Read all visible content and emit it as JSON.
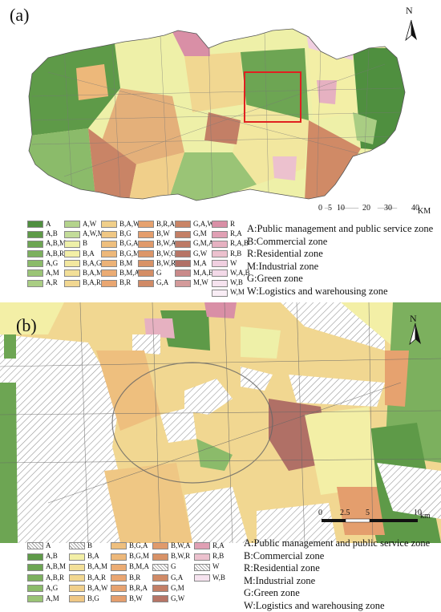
{
  "panel_a": {
    "label": "(a)",
    "north": "N",
    "scale": {
      "ticks": [
        "0",
        "5",
        "10",
        "20",
        "30",
        "40"
      ],
      "unit": "KM"
    },
    "legend_items": [
      {
        "code": "A",
        "color": "#4f8f3f"
      },
      {
        "code": "A,B",
        "color": "#5e9a48"
      },
      {
        "code": "A,B,M",
        "color": "#6da553"
      },
      {
        "code": "A,B,R",
        "color": "#7cb05e"
      },
      {
        "code": "A,G",
        "color": "#8bbb6a"
      },
      {
        "code": "A,M",
        "color": "#9ac476"
      },
      {
        "code": "A,R",
        "color": "#a9cd83"
      },
      {
        "code": "A,W",
        "color": "#b4d38c"
      },
      {
        "code": "A,W,M",
        "color": "#c3dc99"
      },
      {
        "code": "B",
        "color": "#eef0a8"
      },
      {
        "code": "B,A",
        "color": "#f3efa6"
      },
      {
        "code": "B,A,G",
        "color": "#f2e79f"
      },
      {
        "code": "B,A,M",
        "color": "#f2df98"
      },
      {
        "code": "B,A,R",
        "color": "#f1d791"
      },
      {
        "code": "B,A,W",
        "color": "#f0cf8a"
      },
      {
        "code": "B,G",
        "color": "#efc784"
      },
      {
        "code": "B,G,A",
        "color": "#eebf7e"
      },
      {
        "code": "B,G,M",
        "color": "#edb87a"
      },
      {
        "code": "B,M",
        "color": "#ecb277"
      },
      {
        "code": "B,M,A",
        "color": "#ebac74"
      },
      {
        "code": "B,R",
        "color": "#e9a671"
      },
      {
        "code": "B,R,A",
        "color": "#e6a26f"
      },
      {
        "code": "B,W",
        "color": "#e49e6d"
      },
      {
        "code": "B,W,A",
        "color": "#e09a6b"
      },
      {
        "code": "B,W,G",
        "color": "#dc9669"
      },
      {
        "code": "B,W,R",
        "color": "#d89267"
      },
      {
        "code": "G",
        "color": "#d48e66"
      },
      {
        "code": "G,A",
        "color": "#d08a66"
      },
      {
        "code": "G,A,W",
        "color": "#c98466"
      },
      {
        "code": "G,M",
        "color": "#c37f66"
      },
      {
        "code": "G,M,A",
        "color": "#bd7a66"
      },
      {
        "code": "G,W",
        "color": "#b77566"
      },
      {
        "code": "M,A",
        "color": "#b07066"
      },
      {
        "code": "M,A,B",
        "color": "#c98a8a"
      },
      {
        "code": "M,W",
        "color": "#d39a9a"
      },
      {
        "code": "R",
        "color": "#d98fa6"
      },
      {
        "code": "R,A",
        "color": "#e0a0b4"
      },
      {
        "code": "R,A,B",
        "color": "#e6b1c1"
      },
      {
        "code": "R,B",
        "color": "#ecc1ce"
      },
      {
        "code": "W",
        "color": "#f0cfe0"
      },
      {
        "code": "W,A,B",
        "color": "#f3d9e8"
      },
      {
        "code": "W,B",
        "color": "#f6e3ef"
      },
      {
        "code": "W,M",
        "color": "#f9edf5"
      }
    ]
  },
  "panel_b": {
    "label": "(b)",
    "north": "N",
    "scale": {
      "ticks": [
        "0",
        "2.5",
        "5",
        "10"
      ],
      "unit": "km"
    },
    "legend_items": [
      {
        "code": "A",
        "color": "hatch"
      },
      {
        "code": "A,B",
        "color": "#5e9a48"
      },
      {
        "code": "A,B,M",
        "color": "#6da553"
      },
      {
        "code": "A,B,R",
        "color": "#7cb05e"
      },
      {
        "code": "A,G",
        "color": "#8bbb6a"
      },
      {
        "code": "A,M",
        "color": "#9ac476"
      },
      {
        "code": "B",
        "color": "hatch"
      },
      {
        "code": "B,A",
        "color": "#f3efa6"
      },
      {
        "code": "B,A,M",
        "color": "#f2df98"
      },
      {
        "code": "B,A,R",
        "color": "#f1d791"
      },
      {
        "code": "B,A,W",
        "color": "#f0cf8a"
      },
      {
        "code": "B,G",
        "color": "#efc784"
      },
      {
        "code": "B,G,A",
        "color": "#eebf7e"
      },
      {
        "code": "B,G,M",
        "color": "#edb87a"
      },
      {
        "code": "B,M,A",
        "color": "#ebac74"
      },
      {
        "code": "B,R",
        "color": "#e9a671"
      },
      {
        "code": "B,R,A",
        "color": "#e6a26f"
      },
      {
        "code": "B,W",
        "color": "#e49e6d"
      },
      {
        "code": "B,W,A",
        "color": "#e09a6b"
      },
      {
        "code": "B,W,R",
        "color": "#d89267"
      },
      {
        "code": "G",
        "color": "hatch"
      },
      {
        "code": "G,A",
        "color": "#d08a66"
      },
      {
        "code": "G,M",
        "color": "#c37f66"
      },
      {
        "code": "G,W",
        "color": "#b77566"
      },
      {
        "code": "R,A",
        "color": "#e0a0b4"
      },
      {
        "code": "R,B",
        "color": "#ecc1ce"
      },
      {
        "code": "W",
        "color": "hatch"
      },
      {
        "code": "W,B",
        "color": "#f6e3ef"
      }
    ]
  },
  "zone_definitions": [
    "A:Public management and public service zone",
    "B:Commercial zone",
    "R:Residential zone",
    "M:Industrial zone",
    "G:Green zone",
    "W:Logistics and warehousing zone"
  ]
}
